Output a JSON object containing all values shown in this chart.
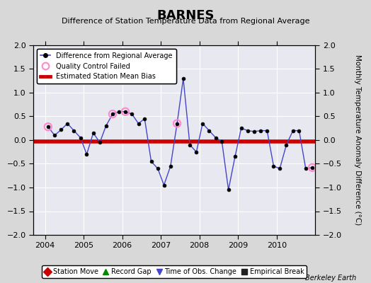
{
  "title": "BARNES",
  "subtitle": "Difference of Station Temperature Data from Regional Average",
  "ylabel_right": "Monthly Temperature Anomaly Difference (°C)",
  "credit": "Berkeley Earth",
  "xlim": [
    2003.7,
    2011.0
  ],
  "ylim": [
    -2,
    2
  ],
  "yticks": [
    -2,
    -1.5,
    -1,
    -0.5,
    0,
    0.5,
    1,
    1.5,
    2
  ],
  "xticks": [
    2004,
    2005,
    2006,
    2007,
    2008,
    2009,
    2010
  ],
  "bias_value": -0.03,
  "bg_color": "#d8d8d8",
  "plot_bg": "#e8e8f0",
  "line_color": "#4444cc",
  "bias_color": "#cc0000",
  "marker_color": "#000000",
  "qc_color": "#ff88cc",
  "times": [
    2004.08,
    2004.25,
    2004.42,
    2004.58,
    2004.75,
    2004.92,
    2005.08,
    2005.25,
    2005.42,
    2005.58,
    2005.75,
    2005.92,
    2006.08,
    2006.25,
    2006.42,
    2006.58,
    2006.75,
    2006.92,
    2007.08,
    2007.25,
    2007.42,
    2007.58,
    2007.75,
    2007.92,
    2008.08,
    2008.25,
    2008.42,
    2008.58,
    2008.75,
    2008.92,
    2009.08,
    2009.25,
    2009.42,
    2009.58,
    2009.75,
    2009.92,
    2010.08,
    2010.25,
    2010.42,
    2010.58,
    2010.75,
    2010.92
  ],
  "values": [
    0.28,
    0.1,
    0.22,
    0.35,
    0.2,
    0.05,
    -0.3,
    0.15,
    -0.05,
    0.3,
    0.55,
    0.6,
    0.6,
    0.55,
    0.35,
    0.45,
    -0.45,
    -0.6,
    -0.95,
    -0.55,
    0.35,
    1.3,
    -0.1,
    -0.25,
    0.35,
    0.2,
    0.05,
    -0.03,
    -1.05,
    -0.35,
    0.25,
    0.2,
    0.18,
    0.2,
    0.2,
    -0.55,
    -0.6,
    -0.1,
    0.2,
    0.2,
    -0.6,
    -0.58
  ],
  "qc_times": [
    2004.08,
    2005.75,
    2006.08,
    2007.42,
    2010.92
  ],
  "qc_values": [
    0.28,
    0.55,
    0.6,
    0.35,
    -0.58
  ],
  "legend_items": [
    {
      "label": "Difference from Regional Average",
      "color": "#4444cc",
      "marker": "o",
      "linestyle": "-"
    },
    {
      "label": "Quality Control Failed",
      "color": "#ff88cc",
      "marker": "o",
      "linestyle": "none"
    },
    {
      "label": "Estimated Station Mean Bias",
      "color": "#cc0000",
      "marker": "none",
      "linestyle": "-"
    }
  ],
  "bottom_legend": [
    {
      "label": "Station Move",
      "color": "#cc0000",
      "marker": "D"
    },
    {
      "label": "Record Gap",
      "color": "#008800",
      "marker": "^"
    },
    {
      "label": "Time of Obs. Change",
      "color": "#4444cc",
      "marker": "v"
    },
    {
      "label": "Empirical Break",
      "color": "#222222",
      "marker": "s"
    }
  ]
}
